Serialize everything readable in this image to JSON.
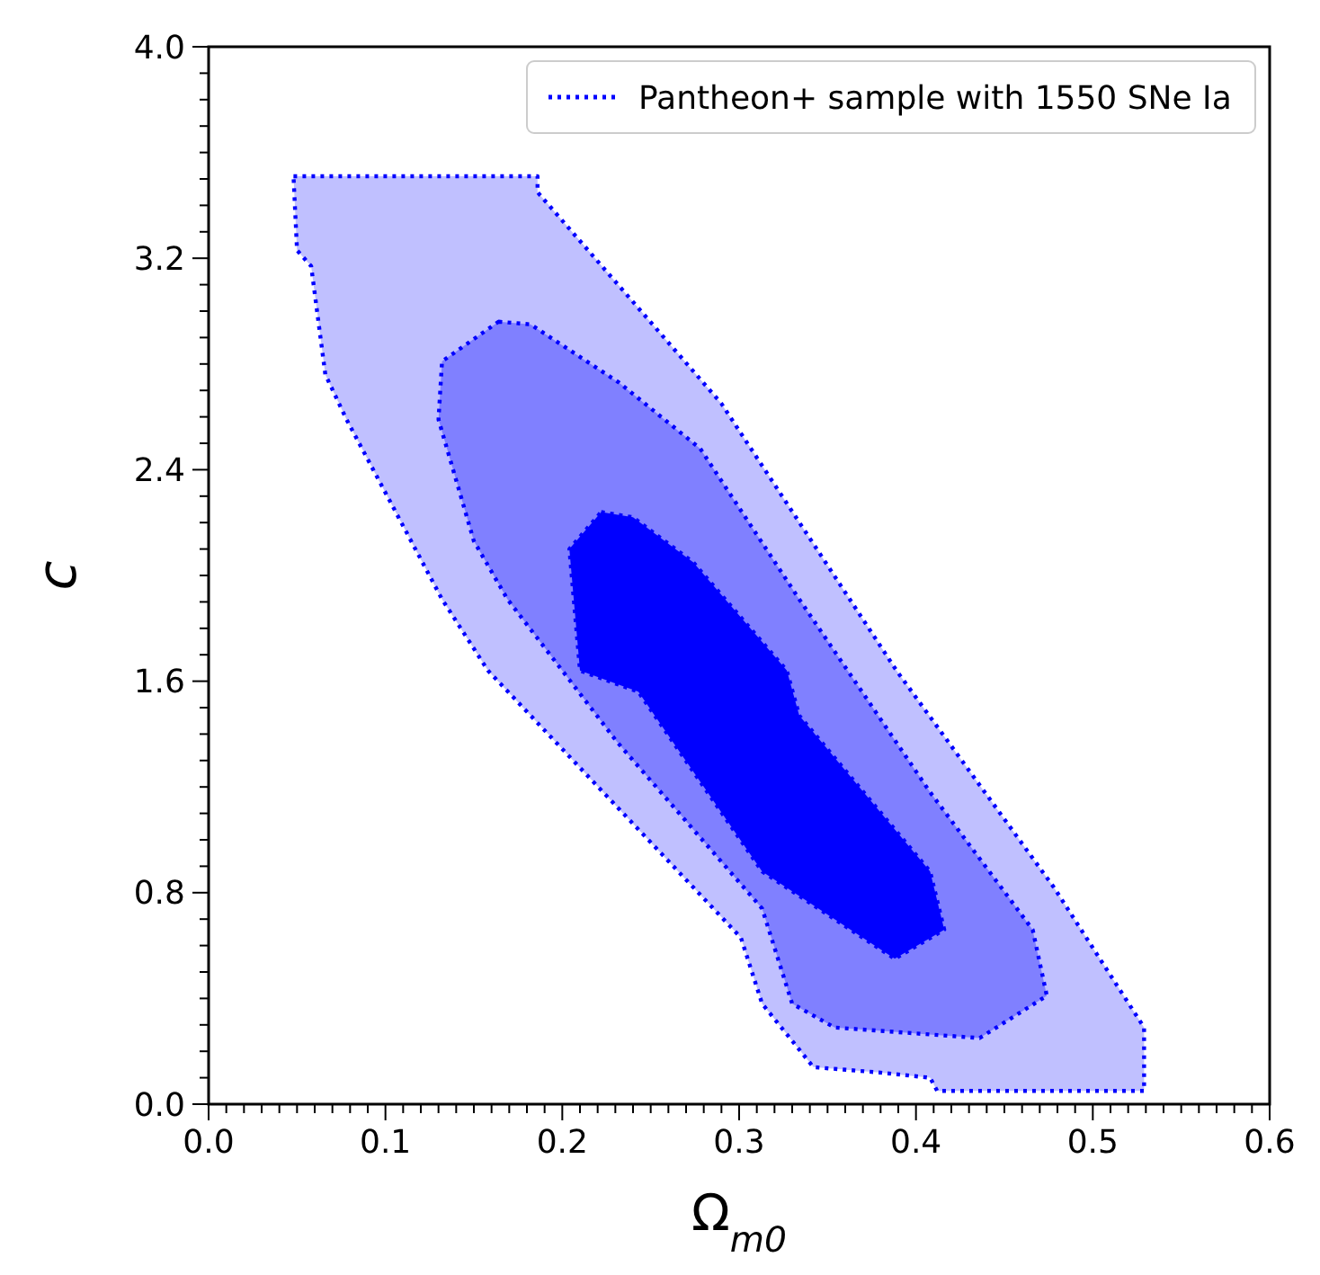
{
  "chart_data": {
    "type": "area",
    "xlabel": "Ω$_{m0}$",
    "ylabel": "c",
    "xlim": [
      0,
      0.6
    ],
    "ylim": [
      0,
      4
    ],
    "xticks": [
      {
        "value": 0,
        "label": "0.0"
      },
      {
        "value": 0.01,
        "label": null
      },
      {
        "value": 0.02,
        "label": null
      },
      {
        "value": 0.03,
        "label": null
      },
      {
        "value": 0.04,
        "label": null
      },
      {
        "value": 0.05,
        "label": null
      },
      {
        "value": 0.06,
        "label": null
      },
      {
        "value": 0.07,
        "label": null
      },
      {
        "value": 0.08,
        "label": null
      },
      {
        "value": 0.09,
        "label": null
      },
      {
        "value": 0.1,
        "label": "0.1"
      },
      {
        "value": 0.11,
        "label": null
      },
      {
        "value": 0.12,
        "label": null
      },
      {
        "value": 0.13,
        "label": null
      },
      {
        "value": 0.14,
        "label": null
      },
      {
        "value": 0.15,
        "label": null
      },
      {
        "value": 0.16,
        "label": null
      },
      {
        "value": 0.17,
        "label": null
      },
      {
        "value": 0.18,
        "label": null
      },
      {
        "value": 0.19,
        "label": null
      },
      {
        "value": 0.2,
        "label": "0.2"
      },
      {
        "value": 0.21,
        "label": null
      },
      {
        "value": 0.22,
        "label": null
      },
      {
        "value": 0.23,
        "label": null
      },
      {
        "value": 0.24,
        "label": null
      },
      {
        "value": 0.25,
        "label": null
      },
      {
        "value": 0.26,
        "label": null
      },
      {
        "value": 0.27,
        "label": null
      },
      {
        "value": 0.28,
        "label": null
      },
      {
        "value": 0.29,
        "label": null
      },
      {
        "value": 0.3,
        "label": "0.3"
      },
      {
        "value": 0.31,
        "label": null
      },
      {
        "value": 0.32,
        "label": null
      },
      {
        "value": 0.33,
        "label": null
      },
      {
        "value": 0.34,
        "label": null
      },
      {
        "value": 0.35,
        "label": null
      },
      {
        "value": 0.36,
        "label": null
      },
      {
        "value": 0.37,
        "label": null
      },
      {
        "value": 0.38,
        "label": null
      },
      {
        "value": 0.39,
        "label": null
      },
      {
        "value": 0.4,
        "label": "0.4"
      },
      {
        "value": 0.41,
        "label": null
      },
      {
        "value": 0.42,
        "label": null
      },
      {
        "value": 0.43,
        "label": null
      },
      {
        "value": 0.44,
        "label": null
      },
      {
        "value": 0.45,
        "label": null
      },
      {
        "value": 0.46,
        "label": null
      },
      {
        "value": 0.47,
        "label": null
      },
      {
        "value": 0.48,
        "label": null
      },
      {
        "value": 0.49,
        "label": null
      },
      {
        "value": 0.5,
        "label": "0.5"
      },
      {
        "value": 0.51,
        "label": null
      },
      {
        "value": 0.52,
        "label": null
      },
      {
        "value": 0.53,
        "label": null
      },
      {
        "value": 0.54,
        "label": null
      },
      {
        "value": 0.55,
        "label": null
      },
      {
        "value": 0.56,
        "label": null
      },
      {
        "value": 0.57,
        "label": null
      },
      {
        "value": 0.58,
        "label": null
      },
      {
        "value": 0.59,
        "label": null
      },
      {
        "value": 0.6,
        "label": "0.6"
      }
    ],
    "yticks": [
      {
        "value": 0,
        "label": "0.0"
      },
      {
        "value": 0.1,
        "label": null
      },
      {
        "value": 0.2,
        "label": null
      },
      {
        "value": 0.3,
        "label": null
      },
      {
        "value": 0.4,
        "label": null
      },
      {
        "value": 0.5,
        "label": null
      },
      {
        "value": 0.6,
        "label": null
      },
      {
        "value": 0.7,
        "label": null
      },
      {
        "value": 0.8,
        "label": "0.8"
      },
      {
        "value": 0.9,
        "label": null
      },
      {
        "value": 1.0,
        "label": null
      },
      {
        "value": 1.1,
        "label": null
      },
      {
        "value": 1.2,
        "label": null
      },
      {
        "value": 1.3,
        "label": null
      },
      {
        "value": 1.4,
        "label": null
      },
      {
        "value": 1.5,
        "label": null
      },
      {
        "value": 1.6,
        "label": "1.6"
      },
      {
        "value": 1.7,
        "label": null
      },
      {
        "value": 1.8,
        "label": null
      },
      {
        "value": 1.9,
        "label": null
      },
      {
        "value": 2.0,
        "label": null
      },
      {
        "value": 2.1,
        "label": null
      },
      {
        "value": 2.2,
        "label": null
      },
      {
        "value": 2.3,
        "label": null
      },
      {
        "value": 2.4,
        "label": "2.4"
      },
      {
        "value": 2.5,
        "label": null
      },
      {
        "value": 2.6,
        "label": null
      },
      {
        "value": 2.7,
        "label": null
      },
      {
        "value": 2.8,
        "label": null
      },
      {
        "value": 2.9,
        "label": null
      },
      {
        "value": 3.0,
        "label": null
      },
      {
        "value": 3.1,
        "label": null
      },
      {
        "value": 3.2,
        "label": "3.2"
      },
      {
        "value": 3.3,
        "label": null
      },
      {
        "value": 3.4,
        "label": null
      },
      {
        "value": 3.5,
        "label": null
      },
      {
        "value": 3.6,
        "label": null
      },
      {
        "value": 3.7,
        "label": null
      },
      {
        "value": 3.8,
        "label": null
      },
      {
        "value": 3.9,
        "label": null
      },
      {
        "value": 4.0,
        "label": "4.0"
      }
    ],
    "line_style": "dotted",
    "legend": "top right",
    "grid": false,
    "series": [
      {
        "name": "Pantheon+ sample with 1550 SNe Ia",
        "color": "#c0c0ff",
        "x": [
          0.048,
          0.186,
          0.186,
          0.29,
          0.389,
          0.478,
          0.529,
          0.529,
          0.412,
          0.408,
          0.379,
          0.342,
          0.313,
          0.301,
          0.158,
          0.132,
          0.078,
          0.066,
          0.058,
          0.05
        ],
        "values": [
          3.51,
          3.51,
          3.45,
          2.65,
          1.64,
          0.82,
          0.29,
          0.05,
          0.05,
          0.1,
          0.12,
          0.14,
          0.38,
          0.63,
          1.64,
          1.91,
          2.59,
          2.76,
          3.17,
          3.23
        ]
      },
      {
        "color": "#8080ff",
        "x": [
          0.164,
          0.182,
          0.232,
          0.278,
          0.334,
          0.408,
          0.466,
          0.474,
          0.436,
          0.354,
          0.33,
          0.313,
          0.231,
          0.169,
          0.15,
          0.13,
          0.132
        ],
        "values": [
          2.96,
          2.95,
          2.73,
          2.48,
          1.91,
          1.18,
          0.66,
          0.41,
          0.25,
          0.29,
          0.38,
          0.74,
          1.37,
          1.91,
          2.13,
          2.59,
          2.81
        ]
      },
      {
        "color": "#0000ff",
        "x": [
          0.222,
          0.24,
          0.274,
          0.327,
          0.334,
          0.408,
          0.416,
          0.388,
          0.313,
          0.243,
          0.21,
          0.204
        ],
        "values": [
          2.24,
          2.22,
          2.05,
          1.64,
          1.47,
          0.88,
          0.66,
          0.55,
          0.88,
          1.56,
          1.64,
          2.1
        ]
      }
    ]
  }
}
